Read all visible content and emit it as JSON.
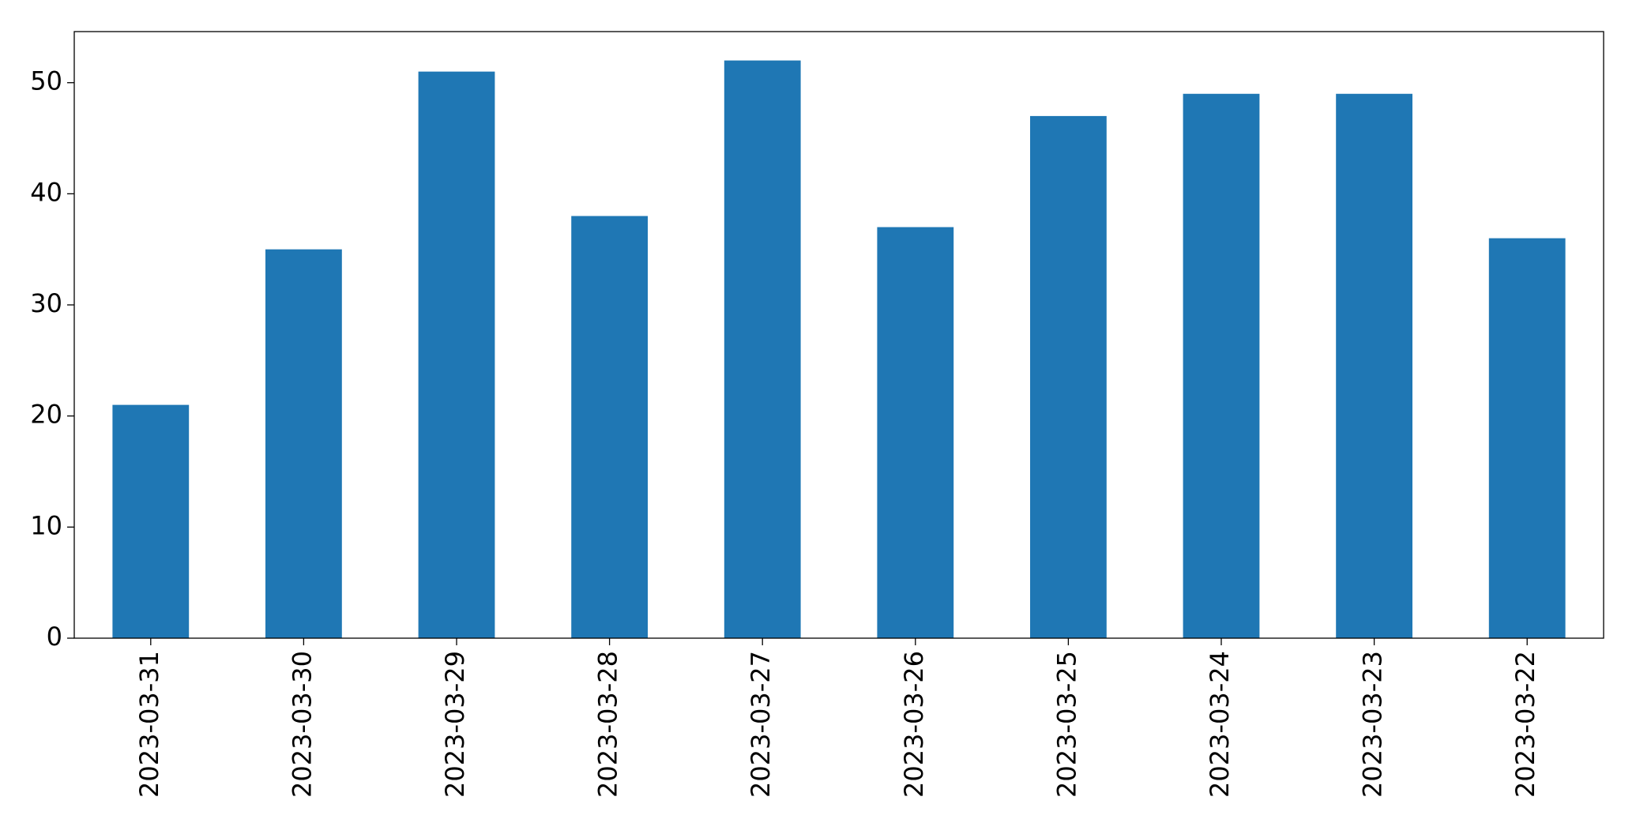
{
  "chart_data": {
    "type": "bar",
    "categories": [
      "2023-03-31",
      "2023-03-30",
      "2023-03-29",
      "2023-03-28",
      "2023-03-27",
      "2023-03-26",
      "2023-03-25",
      "2023-03-24",
      "2023-03-23",
      "2023-03-22"
    ],
    "values": [
      21,
      35,
      51,
      38,
      52,
      37,
      47,
      49,
      49,
      36
    ],
    "color": "#1f77b4",
    "ylim": [
      0,
      54.6
    ],
    "yticks": [
      0,
      10,
      20,
      30,
      40,
      50
    ],
    "grid": false
  }
}
